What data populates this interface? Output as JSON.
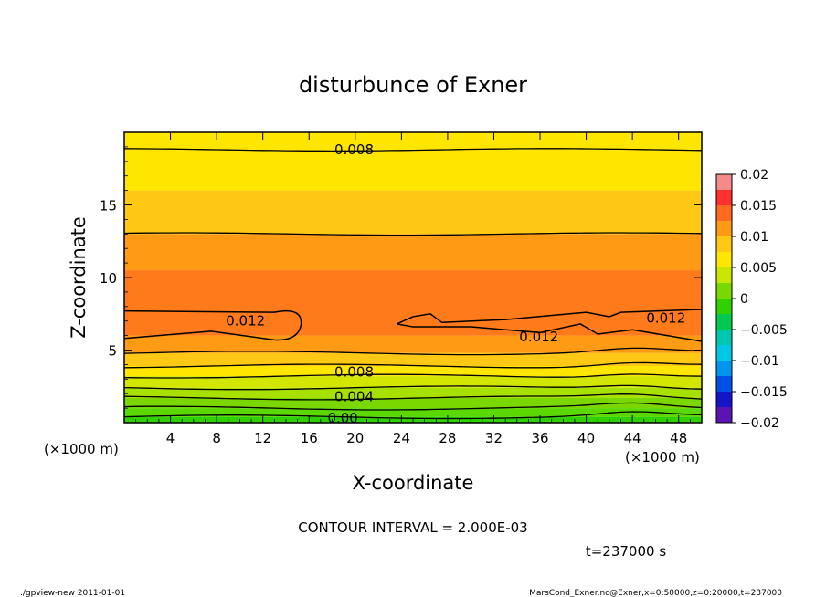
{
  "chart_data": {
    "type": "heatmap",
    "title": "disturbunce of Exner",
    "xlabel": "X-coordinate",
    "ylabel": "Z-coordinate",
    "x_unit": "(×1000 m)",
    "z_unit": "(×1000 m)",
    "xlim": [
      0,
      50
    ],
    "ylim": [
      0,
      20
    ],
    "x_ticks": [
      4,
      8,
      12,
      16,
      20,
      24,
      28,
      32,
      36,
      40,
      44,
      48
    ],
    "y_ticks": [
      5,
      10,
      15
    ],
    "contour_interval_text": "CONTOUR INTERVAL = 2.000E-03",
    "time_text": "t=237000 s",
    "colorbar": {
      "ticks": [
        "0.02",
        "0.015",
        "0.01",
        "0.005",
        "0",
        "−0.005",
        "−0.01",
        "−0.015",
        "−0.02"
      ],
      "colors": [
        "#f58a8a",
        "#ff3030",
        "#ff6a20",
        "#ff9a14",
        "#ffc814",
        "#ffe600",
        "#c8e600",
        "#7ad800",
        "#2fd200",
        "#00c850",
        "#00c8b0",
        "#00c8e6",
        "#0096f0",
        "#0050e6",
        "#1414c8",
        "#5a14b4"
      ]
    },
    "fill_bands": [
      {
        "z_range": [
          0.0,
          0.4
        ],
        "color": "#2fd200"
      },
      {
        "z_range": [
          0.4,
          1.0
        ],
        "color": "#5ad800"
      },
      {
        "z_range": [
          1.0,
          1.7
        ],
        "color": "#7ad800"
      },
      {
        "z_range": [
          1.7,
          2.4
        ],
        "color": "#a8e000"
      },
      {
        "z_range": [
          2.4,
          3.2
        ],
        "color": "#d2e600"
      },
      {
        "z_range": [
          3.2,
          3.9
        ],
        "color": "#ffe600"
      },
      {
        "z_range": [
          3.9,
          4.8
        ],
        "color": "#ffc814"
      },
      {
        "z_range": [
          4.8,
          6.0
        ],
        "color": "#ff9a14"
      },
      {
        "z_range": [
          6.0,
          10.5
        ],
        "color": "#ff7a1a"
      },
      {
        "z_range": [
          10.5,
          13.0
        ],
        "color": "#ff9a14"
      },
      {
        "z_range": [
          13.0,
          16.0
        ],
        "color": "#ffc814"
      },
      {
        "z_range": [
          16.0,
          20.0
        ],
        "color": "#ffe600"
      }
    ],
    "contour_labels": [
      {
        "text": "0.008",
        "x": 18.2,
        "z": 18.8
      },
      {
        "text": "0.012",
        "x": 8.8,
        "z": 7.0
      },
      {
        "text": "0.012",
        "x": 34.2,
        "z": 5.9
      },
      {
        "text": "0.012",
        "x": 45.2,
        "z": 7.2
      },
      {
        "text": "0.008",
        "x": 18.2,
        "z": 3.5
      },
      {
        "text": "0.004",
        "x": 18.2,
        "z": 1.8
      },
      {
        "text": "0.00",
        "x": 17.6,
        "z": 0.3
      }
    ]
  },
  "footer": {
    "left": "./gpview-new   2011-01-01",
    "right": "MarsCond_Exner.nc@Exner,x=0:50000,z=0:20000,t=237000"
  }
}
